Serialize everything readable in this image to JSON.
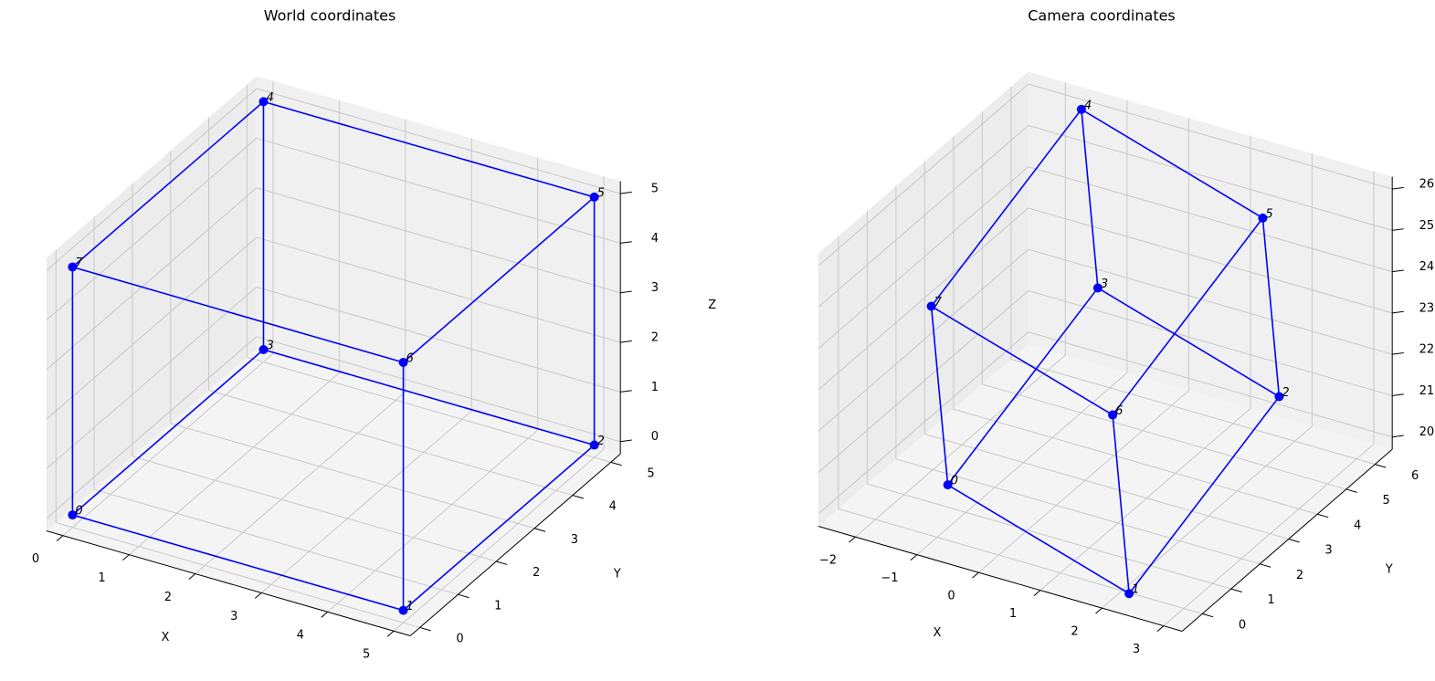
{
  "chart_data": [
    {
      "type": "scatter3d",
      "title": "World coordinates",
      "xlabel": "X",
      "ylabel": "Y",
      "zlabel": "Z",
      "x": [
        0,
        5,
        5,
        0,
        0,
        5,
        5,
        0
      ],
      "y": [
        0,
        0,
        5,
        5,
        5,
        5,
        0,
        0
      ],
      "z": [
        0,
        0,
        0,
        0,
        5,
        5,
        5,
        5
      ],
      "point_labels": [
        "0",
        "1",
        "2",
        "3",
        "4",
        "5",
        "6",
        "7"
      ],
      "edges": [
        [
          0,
          1
        ],
        [
          1,
          2
        ],
        [
          2,
          3
        ],
        [
          3,
          0
        ],
        [
          4,
          5
        ],
        [
          5,
          6
        ],
        [
          6,
          7
        ],
        [
          7,
          4
        ],
        [
          0,
          7
        ],
        [
          1,
          6
        ],
        [
          2,
          5
        ],
        [
          3,
          4
        ]
      ],
      "color": "#0000ff",
      "xlim": [
        -0.25,
        5.25
      ],
      "ylim": [
        -0.25,
        5.25
      ],
      "zlim": [
        -0.25,
        5.25
      ],
      "xticks": [
        0,
        1,
        2,
        3,
        4,
        5
      ],
      "yticks": [
        0,
        1,
        2,
        3,
        4,
        5
      ],
      "zticks": [
        0,
        1,
        2,
        3,
        4,
        5
      ],
      "grid": true
    },
    {
      "type": "scatter3d",
      "title": "Camera coordinates",
      "xlabel": "X",
      "ylabel": "Y",
      "x": [
        -1.2,
        2.3,
        3.1,
        -0.4,
        -1.6,
        1.9,
        1.1,
        -2.4
      ],
      "y": [
        0.8,
        -0.4,
        3.1,
        4.3,
        6.3,
        5.1,
        1.6,
        2.8
      ],
      "z": [
        20.4,
        20.0,
        23.0,
        23.4,
        26.0,
        25.6,
        22.6,
        23.0
      ],
      "point_labels": [
        "0",
        "1",
        "2",
        "3",
        "4",
        "5",
        "6",
        "7"
      ],
      "edges": [
        [
          0,
          1
        ],
        [
          1,
          2
        ],
        [
          2,
          3
        ],
        [
          3,
          0
        ],
        [
          4,
          5
        ],
        [
          5,
          6
        ],
        [
          6,
          7
        ],
        [
          7,
          4
        ],
        [
          0,
          7
        ],
        [
          1,
          6
        ],
        [
          2,
          5
        ],
        [
          3,
          4
        ]
      ],
      "color": "#0000ff",
      "xlim": [
        -2.6,
        3.3
      ],
      "ylim": [
        -0.7,
        6.6
      ],
      "zlim": [
        19.7,
        26.3
      ],
      "xticks": [
        {
          "value": -2,
          "label": "−2"
        },
        {
          "value": -1,
          "label": "−1"
        },
        0,
        1,
        2,
        3
      ],
      "yticks": [
        0,
        1,
        2,
        3,
        4,
        5,
        6
      ],
      "zticks": [
        20,
        21,
        22,
        23,
        24,
        25,
        26
      ],
      "grid": true
    }
  ]
}
